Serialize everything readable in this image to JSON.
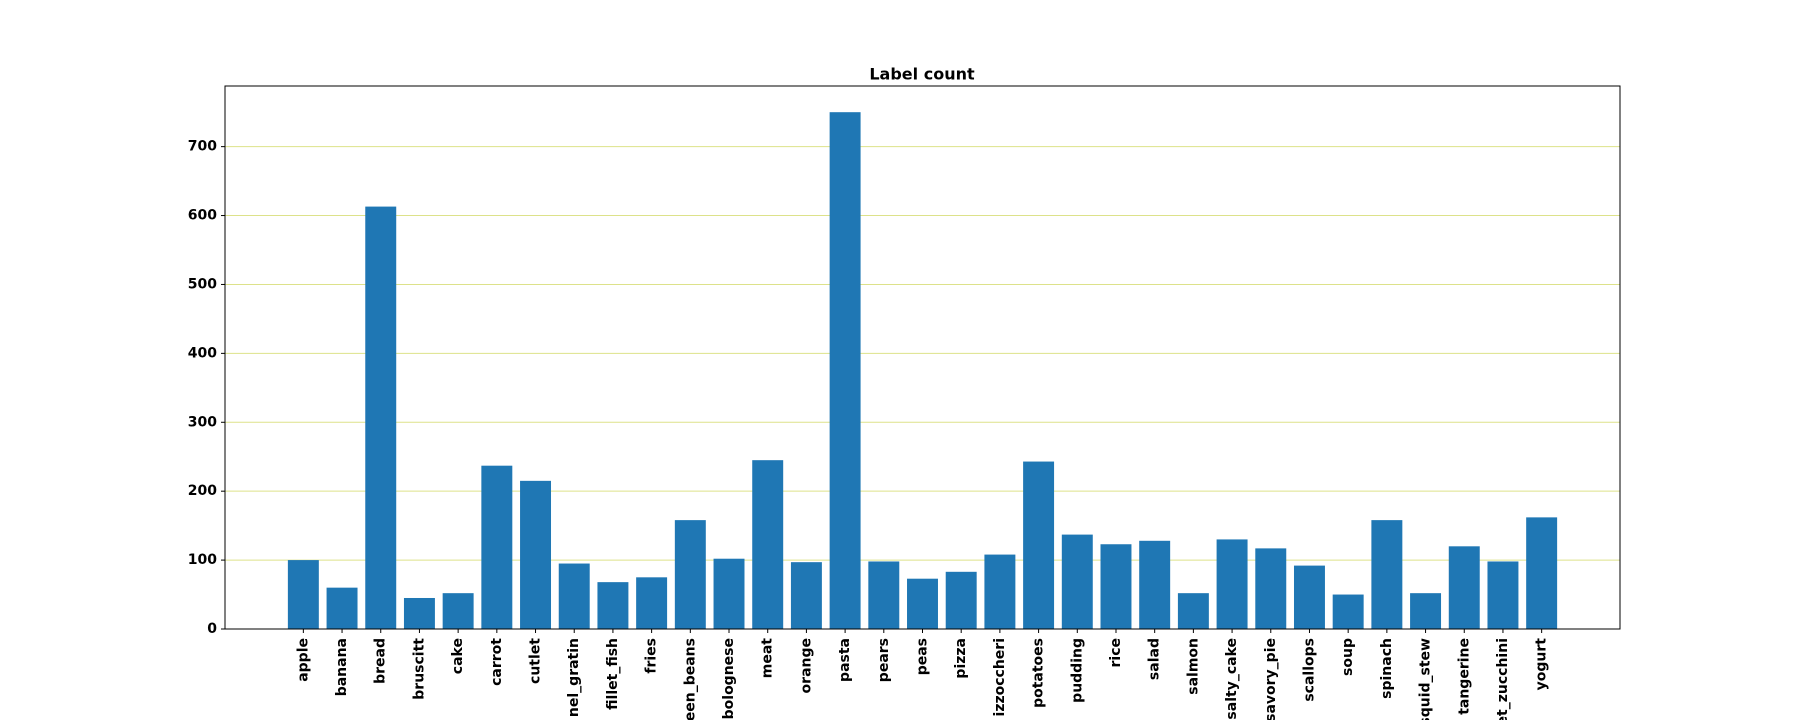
{
  "chart_data": {
    "type": "bar",
    "title": "Label count",
    "categories": [
      "apple",
      "banana",
      "bread",
      "bruscitt",
      "cake",
      "carrot",
      "cutlet",
      "nel_gratin",
      "fillet_fish",
      "fries",
      "een_beans",
      "bolognese",
      "meat",
      "orange",
      "pasta",
      "pears",
      "peas",
      "pizza",
      "izzoccheri",
      "potatoes",
      "pudding",
      "rice",
      "salad",
      "salmon",
      "salty_cake",
      "savory_pie",
      "scallops",
      "soup",
      "spinach",
      "squid_stew",
      "tangerine",
      "et_zucchini",
      "yogurt"
    ],
    "values": [
      100,
      60,
      613,
      45,
      52,
      237,
      215,
      95,
      68,
      75,
      158,
      102,
      245,
      97,
      750,
      98,
      73,
      83,
      108,
      243,
      137,
      123,
      128,
      52,
      130,
      117,
      92,
      50,
      158,
      52,
      120,
      98,
      162
    ],
    "color": "#1f77b4",
    "ylim": [
      0,
      788
    ],
    "yticks": [
      0,
      100,
      200,
      300,
      400,
      500,
      600,
      700
    ],
    "grid": true,
    "grid_color": "#dde28a"
  }
}
